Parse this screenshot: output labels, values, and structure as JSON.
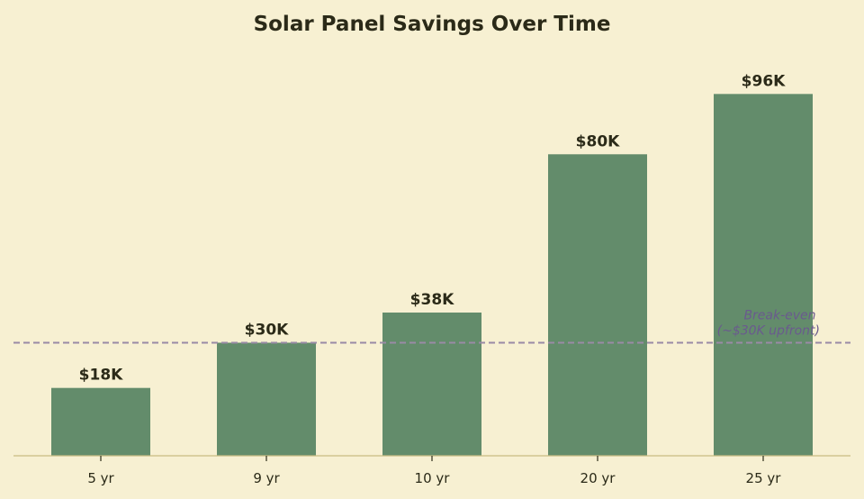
{
  "chart_data": {
    "type": "bar",
    "title": "Solar Panel Savings Over Time",
    "xlabel": "",
    "ylabel": "",
    "categories": [
      "5 yr",
      "9 yr",
      "10 yr",
      "20 yr",
      "25 yr"
    ],
    "values": [
      18,
      30,
      38,
      80,
      96
    ],
    "data_labels": [
      "$18K",
      "$30K",
      "$38K",
      "$80K",
      "$96K"
    ],
    "unit": "$K",
    "ylim": [
      0,
      100
    ],
    "grid": false,
    "legend": "none",
    "reference_line": {
      "value": 30,
      "style": "dashed",
      "label_line1": "Break-even",
      "label_line2": "(~$30K upfront)"
    },
    "colors": {
      "background": "#f7f0d2",
      "bar": "#638c6b",
      "text": "#2b2a18",
      "axis": "#c8bb82",
      "reference_line": "#9a8aa6",
      "annotation": "#6a5a8e"
    }
  }
}
